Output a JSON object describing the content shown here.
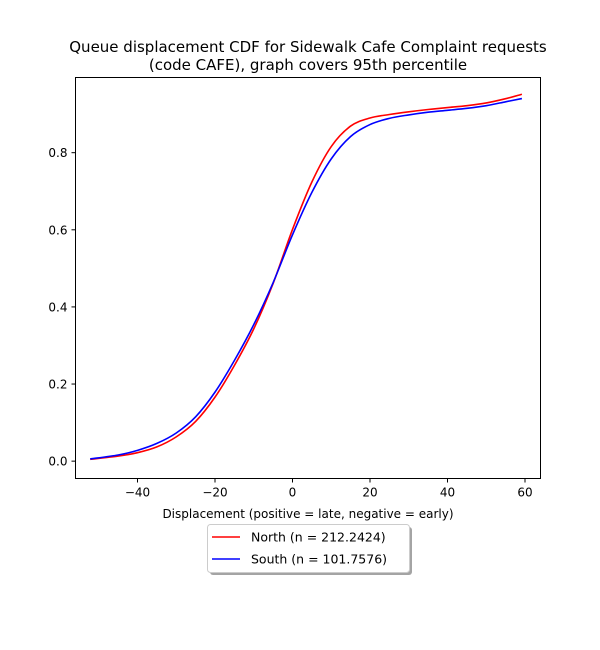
{
  "chart_data": {
    "type": "line",
    "title_line1": "Queue displacement CDF for Sidewalk Cafe Complaint  requests",
    "title_line2": "(code CAFE), graph covers 95th percentile",
    "xlabel": "Displacement (positive = late, negative = early)",
    "ylabel": "",
    "xlim": [
      -56,
      64
    ],
    "ylim": [
      -0.045,
      0.995
    ],
    "xticks": [
      -40,
      -20,
      0,
      20,
      40,
      60
    ],
    "xtick_labels": [
      "−40",
      "−20",
      "0",
      "20",
      "40",
      "60"
    ],
    "yticks": [
      0.0,
      0.2,
      0.4,
      0.6,
      0.8
    ],
    "ytick_labels": [
      "0.0",
      "0.2",
      "0.4",
      "0.6",
      "0.8"
    ],
    "grid": false,
    "legend_position": "below-center",
    "series": [
      {
        "name": "North (n = 212.2424)",
        "color": "#ff0000",
        "x": [
          -52,
          -45,
          -40,
          -35,
          -30,
          -25,
          -20,
          -15,
          -10,
          -5,
          0,
          5,
          10,
          15,
          20,
          25,
          30,
          35,
          40,
          45,
          50,
          55,
          59
        ],
        "y": [
          0.005,
          0.013,
          0.022,
          0.037,
          0.063,
          0.103,
          0.166,
          0.248,
          0.343,
          0.461,
          0.601,
          0.724,
          0.816,
          0.869,
          0.89,
          0.899,
          0.906,
          0.912,
          0.917,
          0.922,
          0.929,
          0.94,
          0.951
        ]
      },
      {
        "name": "South (n = 101.7576)",
        "color": "#0000ff",
        "x": [
          -52,
          -45,
          -40,
          -35,
          -30,
          -25,
          -20,
          -15,
          -10,
          -5,
          0,
          5,
          10,
          15,
          20,
          25,
          30,
          35,
          40,
          45,
          50,
          55,
          59
        ],
        "y": [
          0.006,
          0.016,
          0.028,
          0.046,
          0.073,
          0.115,
          0.179,
          0.261,
          0.354,
          0.463,
          0.587,
          0.697,
          0.784,
          0.842,
          0.873,
          0.889,
          0.898,
          0.905,
          0.91,
          0.915,
          0.922,
          0.932,
          0.94
        ]
      }
    ]
  }
}
